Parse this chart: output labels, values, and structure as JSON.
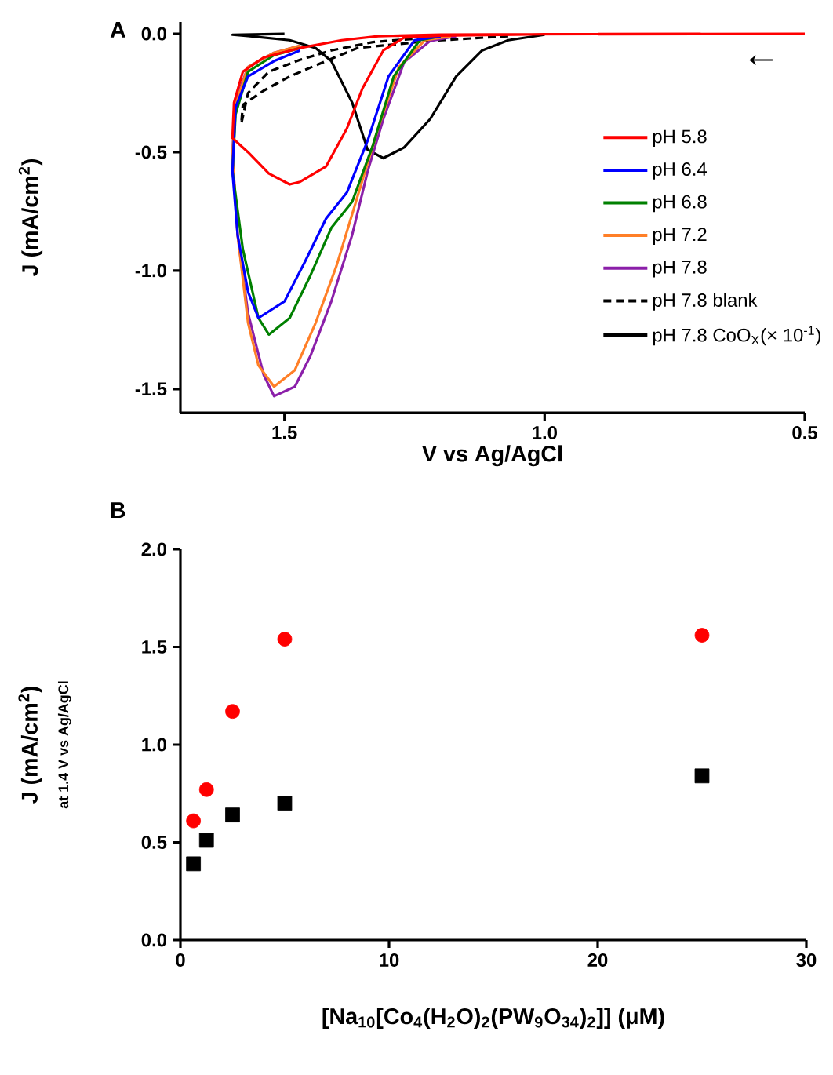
{
  "chart_data": [
    {
      "type": "line",
      "xlabel": "V vs Ag/AgCl",
      "ylabel": "J (mA/cm$^{2}$)",
      "annotations": [
        "A",
        "←"
      ],
      "xlim": [
        1.7,
        0.5
      ],
      "xticks": [
        1.5,
        {
          "value": 1.0,
          "label": "1.0"
        },
        0.5
      ],
      "ylim": [
        -1.6,
        0.05
      ],
      "yticks": [
        {
          "value": 0,
          "label": "0.0"
        },
        -0.5,
        {
          "value": -1,
          "label": "-1.0"
        },
        -1.5
      ],
      "legend": "right",
      "series": [
        {
          "name": "pH 5.8",
          "color": "#ff0000",
          "x": [
            0.5,
            1.0,
            1.2,
            1.27,
            1.31,
            1.35,
            1.38,
            1.42,
            1.47,
            1.49,
            1.53,
            1.57,
            1.6,
            1.597,
            1.58,
            1.54,
            1.47,
            1.39,
            1.32,
            1.2,
            0.7
          ],
          "values": [
            0,
            -0.002,
            -0.008,
            -0.016,
            -0.07,
            -0.23,
            -0.4,
            -0.56,
            -0.625,
            -0.636,
            -0.59,
            -0.5,
            -0.44,
            -0.29,
            -0.16,
            -0.1,
            -0.06,
            -0.027,
            -0.01,
            -0.003,
            0
          ]
        },
        {
          "name": "pH 6.4",
          "color": "#0000ff",
          "x": [
            1.2,
            1.25,
            1.3,
            1.34,
            1.38,
            1.42,
            1.46,
            1.5,
            1.55,
            1.57,
            1.59,
            1.6,
            1.594,
            1.57,
            1.52,
            1.47
          ],
          "values": [
            -0.01,
            -0.027,
            -0.18,
            -0.45,
            -0.67,
            -0.78,
            -0.96,
            -1.13,
            -1.2,
            -1.09,
            -0.85,
            -0.58,
            -0.31,
            -0.18,
            -0.115,
            -0.07
          ]
        },
        {
          "name": "pH 6.8",
          "color": "#008000",
          "x": [
            1.2,
            1.24,
            1.29,
            1.33,
            1.37,
            1.41,
            1.45,
            1.49,
            1.53,
            1.55,
            1.58,
            1.6,
            1.594,
            1.57,
            1.52,
            1.47
          ],
          "values": [
            -0.01,
            -0.027,
            -0.18,
            -0.47,
            -0.71,
            -0.82,
            -1.02,
            -1.2,
            -1.27,
            -1.2,
            -0.91,
            -0.58,
            -0.34,
            -0.16,
            -0.09,
            -0.06
          ]
        },
        {
          "name": "pH 7.2",
          "color": "#ff7f27",
          "x": [
            1.18,
            1.23,
            1.28,
            1.32,
            1.36,
            1.4,
            1.44,
            1.48,
            1.52,
            1.55,
            1.57,
            1.59,
            1.6,
            1.594,
            1.57,
            1.52,
            1.47
          ],
          "values": [
            -0.01,
            -0.027,
            -0.14,
            -0.4,
            -0.69,
            -0.98,
            -1.22,
            -1.42,
            -1.49,
            -1.4,
            -1.22,
            -0.85,
            -0.51,
            -0.3,
            -0.14,
            -0.08,
            -0.05
          ]
        },
        {
          "name": "pH 7.8",
          "color": "#8b1fa9",
          "x": [
            1.17,
            1.22,
            1.27,
            1.31,
            1.34,
            1.37,
            1.41,
            1.45,
            1.48,
            1.52,
            1.54,
            1.57,
            1.59,
            1.6,
            1.595,
            1.57,
            1.52,
            1.47
          ],
          "values": [
            -0.01,
            -0.03,
            -0.12,
            -0.36,
            -0.58,
            -0.85,
            -1.13,
            -1.36,
            -1.49,
            -1.53,
            -1.44,
            -1.18,
            -0.85,
            -0.51,
            -0.29,
            -0.14,
            -0.08,
            -0.05
          ]
        },
        {
          "name": "pH 7.8 blank",
          "color": "#000000",
          "line_style": "dashed",
          "x": [
            1.07,
            1.22,
            1.36,
            1.42,
            1.49,
            1.54,
            1.58,
            1.583,
            1.57,
            1.53,
            1.47,
            1.41,
            1.33,
            1.22
          ],
          "values": [
            -0.01,
            -0.03,
            -0.06,
            -0.115,
            -0.18,
            -0.24,
            -0.3,
            -0.38,
            -0.25,
            -0.16,
            -0.11,
            -0.07,
            -0.035,
            -0.016
          ]
        },
        {
          "name": "pH 7.8 CoO$_{X}$(× 10$^{-1}$)",
          "color": "#000000",
          "x": [
            1.0,
            1.07,
            1.12,
            1.17,
            1.22,
            1.27,
            1.31,
            1.34,
            1.37,
            1.41,
            1.44,
            1.49,
            1.57,
            1.6,
            1.5
          ],
          "values": [
            -0.004,
            -0.027,
            -0.07,
            -0.18,
            -0.36,
            -0.48,
            -0.525,
            -0.49,
            -0.29,
            -0.115,
            -0.06,
            -0.027,
            -0.009,
            -0.004,
            0
          ]
        }
      ]
    },
    {
      "type": "scatter",
      "xlabel": "[Na$_{10}$[Co$_{4}$(H$_{2}$O)$_{2}$(PW$_{9}$O$_{34}$)$_{2}$]] (μM)",
      "ylabel": "J (mA/cm$^{2}$)",
      "annotations": [
        "B",
        "at 1.4 V vs Ag/AgCl"
      ],
      "xlim": [
        0,
        30
      ],
      "xticks": [
        0,
        10,
        20,
        30
      ],
      "ylim": [
        0,
        2
      ],
      "yticks": [
        {
          "value": 0,
          "label": "0.0"
        },
        0.5,
        {
          "value": 1,
          "label": "1.0"
        },
        1.5,
        {
          "value": 2,
          "label": "2.0"
        }
      ],
      "series": [
        {
          "color": "#ff0000",
          "marker": "circle",
          "x": [
            0.625,
            1.25,
            2.5,
            5,
            25
          ],
          "values": [
            0.61,
            0.77,
            1.17,
            1.54,
            1.56
          ]
        },
        {
          "color": "#000000",
          "marker": "square",
          "x": [
            0.625,
            1.25,
            2.5,
            5,
            25
          ],
          "values": [
            0.39,
            0.51,
            0.64,
            0.7,
            0.84
          ]
        }
      ]
    }
  ]
}
